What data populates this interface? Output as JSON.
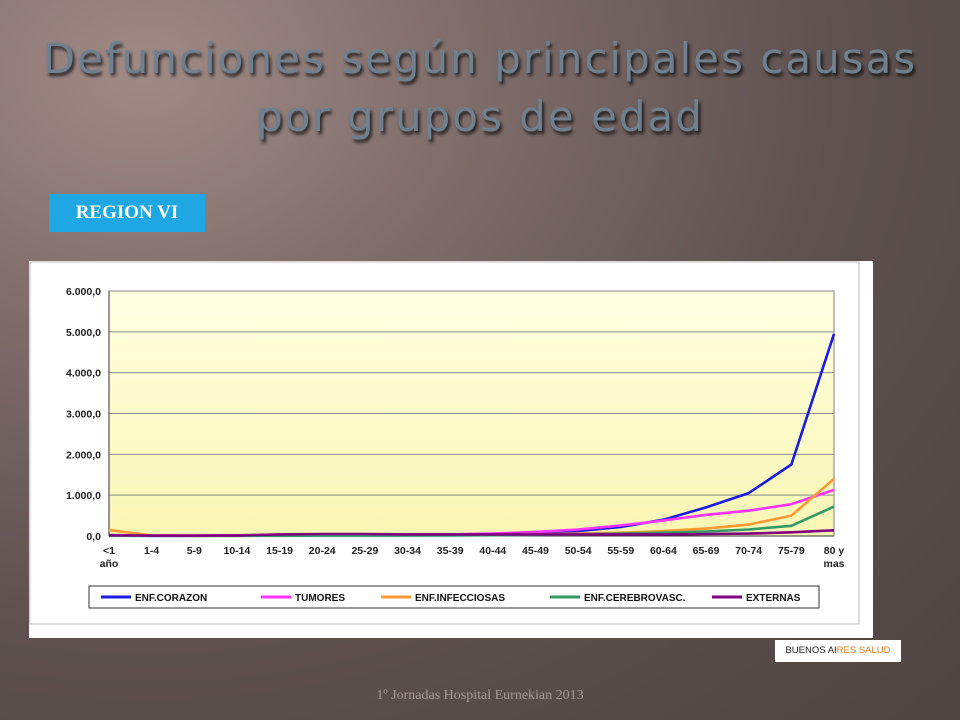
{
  "slide": {
    "title": "Defunciones según principales causas por grupos de edad",
    "region_label": "REGION VI",
    "footer": "1º Jornadas Hospital Eurnekian 2013",
    "logo_text_a": "BUENOS AI",
    "logo_text_b": "RES SALUD"
  },
  "chart_data": {
    "type": "line",
    "title": "",
    "xlabel": "",
    "ylabel": "",
    "ylim": [
      0,
      6000
    ],
    "yticks": [
      0,
      1000,
      2000,
      3000,
      4000,
      5000,
      6000
    ],
    "ytick_labels": [
      "0,0",
      "1.000,0",
      "2.000,0",
      "3.000,0",
      "4.000,0",
      "5.000,0",
      "6.000,0"
    ],
    "grid": true,
    "legend_position": "bottom",
    "categories": [
      "<1 año",
      "1-4",
      "5-9",
      "10-14",
      "15-19",
      "20-24",
      "25-29",
      "30-34",
      "35-39",
      "40-44",
      "45-49",
      "50-54",
      "55-59",
      "60-64",
      "65-69",
      "70-74",
      "75-79",
      "80 y mas"
    ],
    "series": [
      {
        "name": "ENF.CORAZON",
        "color": "#1a1ae6",
        "values": [
          20,
          5,
          5,
          10,
          30,
          40,
          40,
          40,
          40,
          50,
          80,
          120,
          220,
          400,
          700,
          1050,
          1750,
          4950
        ]
      },
      {
        "name": "TUMORES",
        "color": "#ff33ff",
        "values": [
          10,
          5,
          5,
          10,
          30,
          40,
          40,
          40,
          40,
          60,
          100,
          160,
          260,
          380,
          520,
          620,
          780,
          1130
        ]
      },
      {
        "name": "ENF.INFECCIOSAS",
        "color": "#ff9933",
        "values": [
          150,
          10,
          5,
          5,
          10,
          20,
          20,
          20,
          20,
          30,
          40,
          60,
          80,
          120,
          180,
          280,
          500,
          1400
        ]
      },
      {
        "name": "ENF.CEREBROVASC.",
        "color": "#339966",
        "values": [
          5,
          5,
          5,
          5,
          5,
          10,
          10,
          10,
          15,
          20,
          30,
          40,
          60,
          80,
          110,
          160,
          250,
          720
        ]
      },
      {
        "name": "EXTERNAS",
        "color": "#800080",
        "values": [
          20,
          10,
          10,
          15,
          40,
          50,
          50,
          40,
          40,
          40,
          40,
          40,
          40,
          40,
          50,
          60,
          90,
          140
        ]
      }
    ]
  }
}
